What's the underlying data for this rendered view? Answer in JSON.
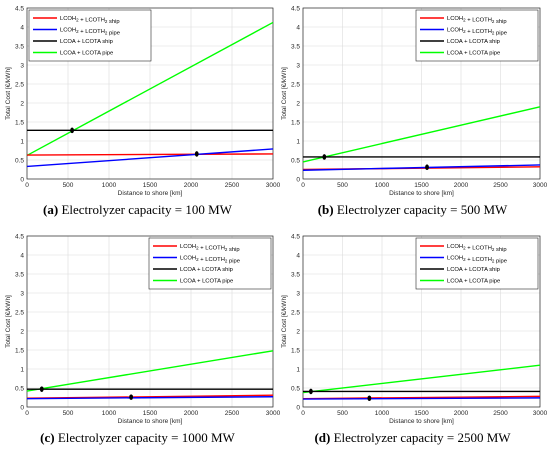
{
  "chart_data": [
    {
      "type": "line",
      "caption_letter": "(a)",
      "caption_text": " Electrolyzer capacity = 100 MW",
      "xlabel": "Distance to shore [km]",
      "ylabel": "Total Cost [€/kWh]",
      "xlim": [
        0,
        3000
      ],
      "ylim": [
        0,
        4.5
      ],
      "xticks": [
        "0",
        "500",
        "1000",
        "1500",
        "2000",
        "2500",
        "3000"
      ],
      "yticks": [
        "0",
        "0.5",
        "1",
        "1.5",
        "2",
        "2.5",
        "3",
        "3.5",
        "4",
        "4.5"
      ],
      "grid": true,
      "legend_position": "top-left",
      "series": [
        {
          "name": "LCOH₂ + LCOTH₂ ship",
          "color": "#ff0000",
          "x": [
            0,
            3000
          ],
          "y": [
            0.63,
            0.66
          ]
        },
        {
          "name": "LCOH₂ + LCOTH₂ pipe",
          "color": "#0000ff",
          "x": [
            0,
            3000
          ],
          "y": [
            0.33,
            0.79
          ]
        },
        {
          "name": "LCOA + LCOTA ship",
          "color": "#000000",
          "x": [
            0,
            3000
          ],
          "y": [
            1.28,
            1.28
          ]
        },
        {
          "name": "LCOA + LCOTA pipe",
          "color": "#00ff00",
          "x": [
            0,
            3000
          ],
          "y": [
            0.62,
            4.12
          ]
        }
      ],
      "markers": [
        {
          "x": 550,
          "y": 1.28
        },
        {
          "x": 2070,
          "y": 0.66
        }
      ]
    },
    {
      "type": "line",
      "caption_letter": "(b)",
      "caption_text": " Electrolyzer capacity = 500 MW",
      "xlabel": "Distance to shore [km]",
      "ylabel": "Total Cost [€/kWh]",
      "xlim": [
        0,
        3000
      ],
      "ylim": [
        0,
        4.5
      ],
      "xticks": [
        "0",
        "500",
        "1000",
        "1500",
        "2000",
        "2500",
        "3000"
      ],
      "yticks": [
        "0",
        "0.5",
        "1",
        "1.5",
        "2",
        "2.5",
        "3",
        "3.5",
        "4",
        "4.5"
      ],
      "grid": true,
      "legend_position": "top-right",
      "series": [
        {
          "name": "LCOH₂ + LCOTH₂ ship",
          "color": "#ff0000",
          "x": [
            0,
            3000
          ],
          "y": [
            0.25,
            0.32
          ]
        },
        {
          "name": "LCOH₂ + LCOTH₂ pipe",
          "color": "#0000ff",
          "x": [
            0,
            3000
          ],
          "y": [
            0.23,
            0.37
          ]
        },
        {
          "name": "LCOA + LCOTA ship",
          "color": "#000000",
          "x": [
            0,
            3000
          ],
          "y": [
            0.58,
            0.58
          ]
        },
        {
          "name": "LCOA + LCOTA pipe",
          "color": "#00ff00",
          "x": [
            0,
            3000
          ],
          "y": [
            0.45,
            1.9
          ]
        }
      ],
      "markers": [
        {
          "x": 270,
          "y": 0.58
        },
        {
          "x": 1570,
          "y": 0.31
        }
      ]
    },
    {
      "type": "line",
      "caption_letter": "(c)",
      "caption_text": " Electrolyzer capacity = 1000 MW",
      "xlabel": "Distance to shore [km]",
      "ylabel": "Total Cost [€/kWh]",
      "xlim": [
        0,
        3000
      ],
      "ylim": [
        0,
        4.5
      ],
      "xticks": [
        "0",
        "500",
        "1000",
        "1500",
        "2000",
        "2500",
        "3000"
      ],
      "yticks": [
        "0",
        "0.5",
        "1",
        "1.5",
        "2",
        "2.5",
        "3",
        "3.5",
        "4",
        "4.5"
      ],
      "grid": true,
      "legend_position": "top-right",
      "series": [
        {
          "name": "LCOH₂ + LCOTH₂ ship",
          "color": "#ff0000",
          "x": [
            0,
            3000
          ],
          "y": [
            0.23,
            0.31
          ]
        },
        {
          "name": "LCOH₂ + LCOTH₂ pipe",
          "color": "#0000ff",
          "x": [
            0,
            3000
          ],
          "y": [
            0.22,
            0.27
          ]
        },
        {
          "name": "LCOA + LCOTA ship",
          "color": "#000000",
          "x": [
            0,
            3000
          ],
          "y": [
            0.47,
            0.47
          ]
        },
        {
          "name": "LCOA + LCOTA pipe",
          "color": "#00ff00",
          "x": [
            0,
            3000
          ],
          "y": [
            0.42,
            1.48
          ]
        }
      ],
      "markers": [
        {
          "x": 180,
          "y": 0.47
        },
        {
          "x": 1270,
          "y": 0.26
        }
      ]
    },
    {
      "type": "line",
      "caption_letter": "(d)",
      "caption_text": " Electrolyzer capacity = 2500 MW",
      "xlabel": "Distance to shore [km]",
      "ylabel": "Total Cost [€/kWh]",
      "xlim": [
        0,
        3000
      ],
      "ylim": [
        0,
        4.5
      ],
      "xticks": [
        "0",
        "500",
        "1000",
        "1500",
        "2000",
        "2500",
        "3000"
      ],
      "yticks": [
        "0",
        "0.5",
        "1",
        "1.5",
        "2",
        "2.5",
        "3",
        "3.5",
        "4",
        "4.5"
      ],
      "grid": true,
      "legend_position": "top-right",
      "series": [
        {
          "name": "LCOH₂ + LCOTH₂ ship",
          "color": "#ff0000",
          "x": [
            0,
            3000
          ],
          "y": [
            0.22,
            0.28
          ]
        },
        {
          "name": "LCOH₂ + LCOTH₂ pipe",
          "color": "#0000ff",
          "x": [
            0,
            3000
          ],
          "y": [
            0.21,
            0.24
          ]
        },
        {
          "name": "LCOA + LCOTA ship",
          "color": "#000000",
          "x": [
            0,
            3000
          ],
          "y": [
            0.41,
            0.41
          ]
        },
        {
          "name": "LCOA + LCOTA pipe",
          "color": "#00ff00",
          "x": [
            0,
            3000
          ],
          "y": [
            0.38,
            1.1
          ]
        }
      ],
      "markers": [
        {
          "x": 100,
          "y": 0.41
        },
        {
          "x": 840,
          "y": 0.23
        }
      ]
    }
  ]
}
